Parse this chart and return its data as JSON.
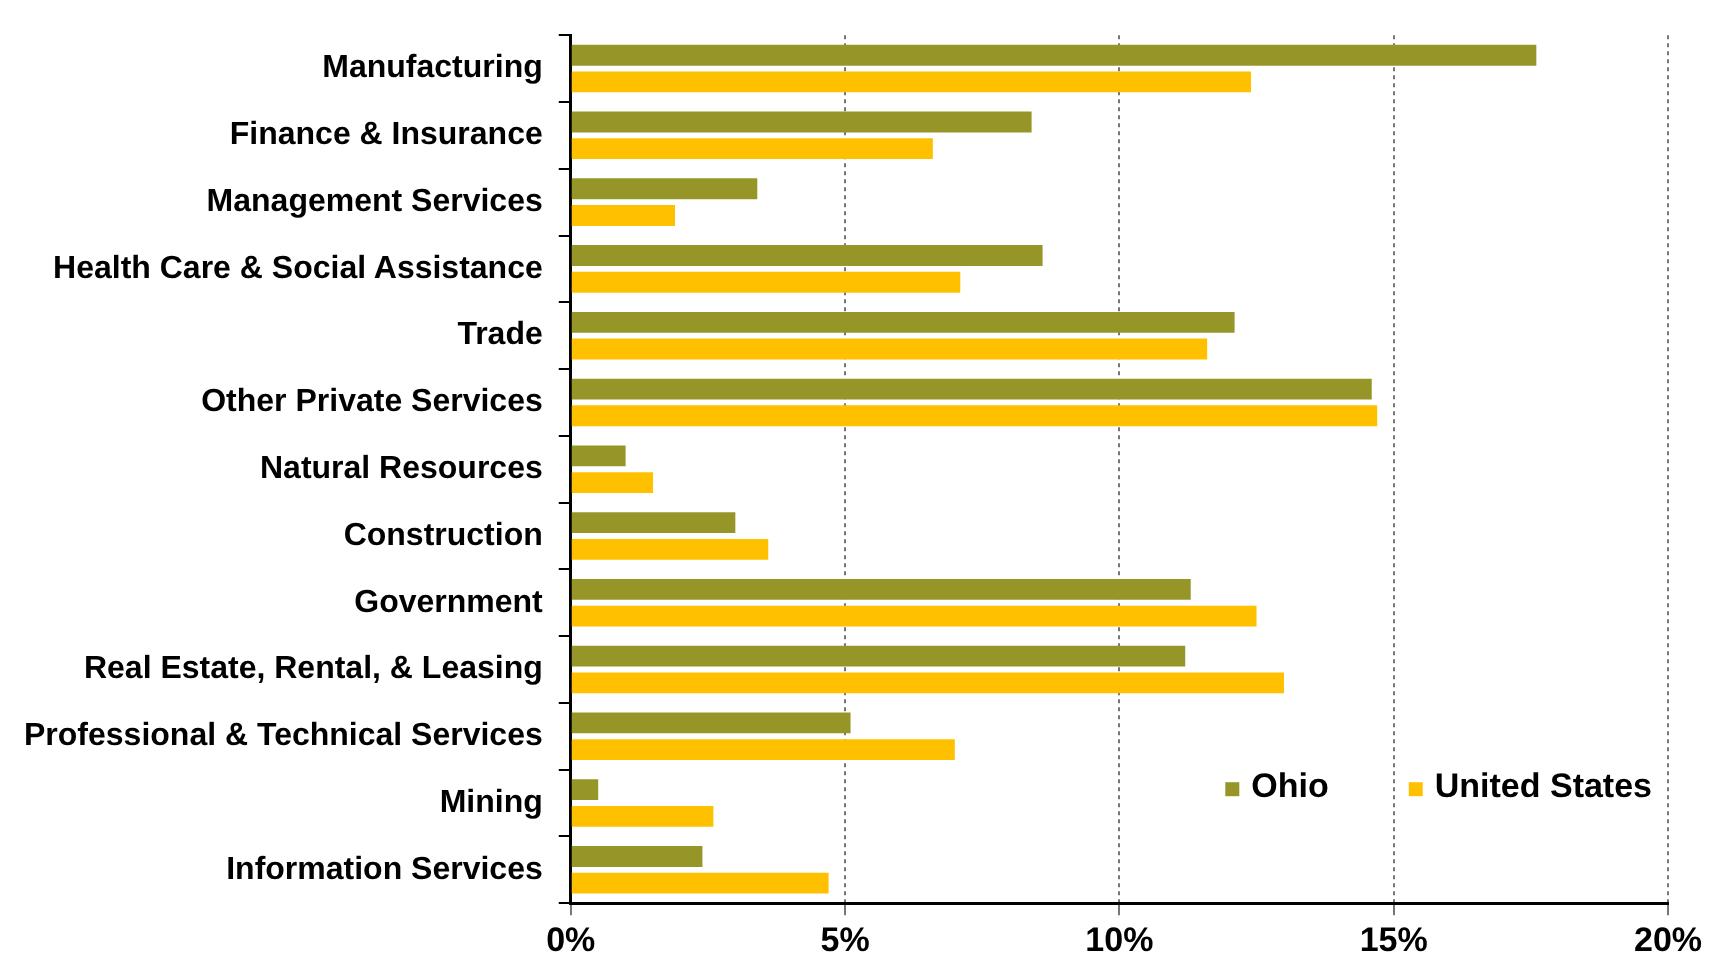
{
  "chart_data": {
    "type": "bar",
    "orientation": "horizontal",
    "categories": [
      "Manufacturing",
      "Finance & Insurance",
      "Management Services",
      "Health Care & Social Assistance",
      "Trade",
      "Other Private Services",
      "Natural Resources",
      "Construction",
      "Government",
      "Real Estate, Rental, & Leasing",
      "Professional & Technical Services",
      "Mining",
      "Information Services"
    ],
    "series": [
      {
        "name": "Ohio",
        "color": "#969628",
        "values": [
          17.6,
          8.4,
          3.4,
          8.6,
          12.1,
          14.6,
          1.0,
          3.0,
          11.3,
          11.2,
          5.1,
          0.5,
          2.4
        ]
      },
      {
        "name": "United States",
        "color": "#ffc000",
        "values": [
          12.4,
          6.6,
          1.9,
          7.1,
          11.6,
          14.7,
          1.5,
          3.6,
          12.5,
          13.0,
          7.0,
          2.6,
          4.7
        ]
      }
    ],
    "xlim": [
      0,
      20
    ],
    "xticks": [
      {
        "value": 0,
        "label": "0%"
      },
      {
        "value": 5,
        "label": "5%"
      },
      {
        "value": 10,
        "label": "10%"
      },
      {
        "value": 15,
        "label": "15%"
      },
      {
        "value": 20,
        "label": "20%"
      }
    ],
    "grid": "x",
    "legend": "bottom right"
  }
}
